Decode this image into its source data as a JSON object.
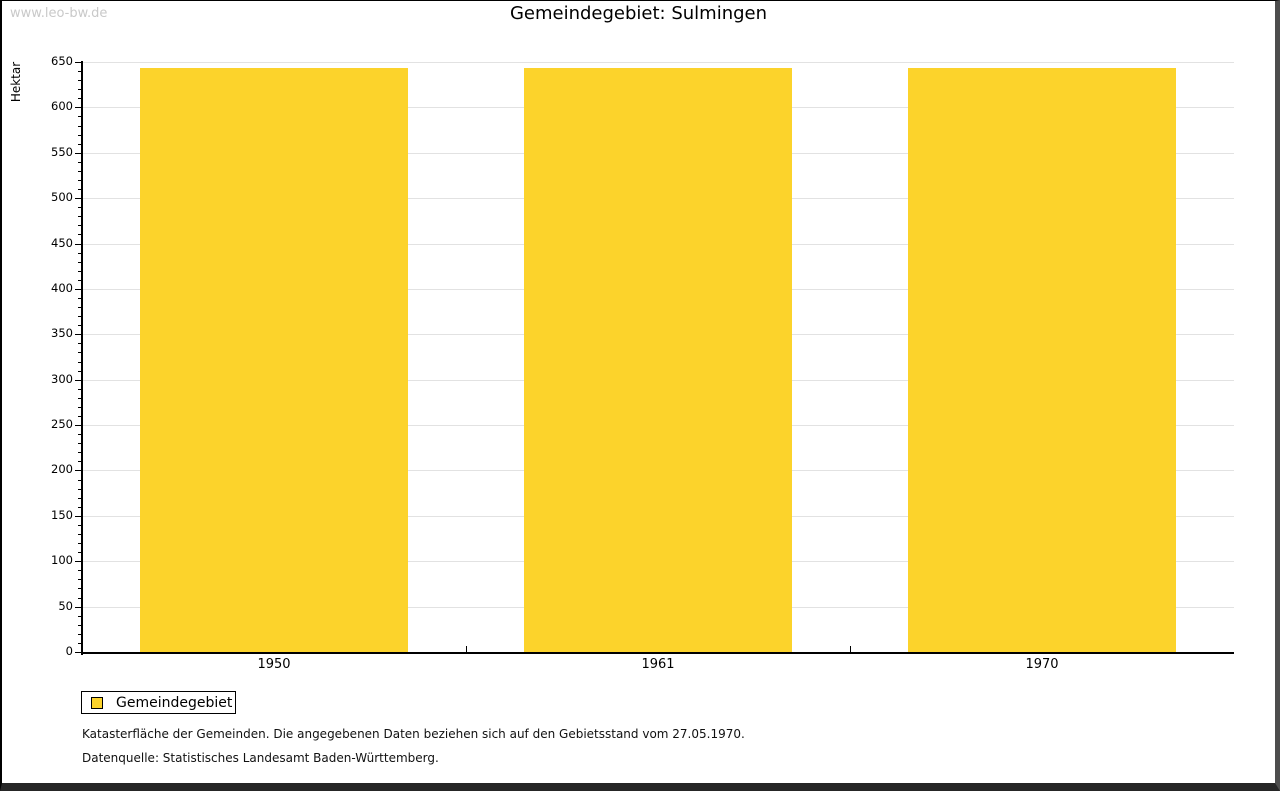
{
  "watermark": "www.leo-bw.de",
  "header": {
    "title": "Gemeindegebiet: Sulmingen"
  },
  "chart_data": {
    "type": "bar",
    "title": "Gemeindegebiet: Sulmingen",
    "categories": [
      "1950",
      "1961",
      "1970"
    ],
    "series": [
      {
        "name": "Gemeindegebiet",
        "values": [
          643,
          643,
          643
        ],
        "color": "#FCD32B"
      }
    ],
    "xlabel": "",
    "ylabel": "Hektar",
    "ylim": [
      0,
      650
    ],
    "ytick_major_step": 50,
    "ytick_minor_step": 10,
    "grid": "horizontal-major",
    "legend_position": "bottom-left",
    "colors": {
      "bar": "#FCD32B",
      "grid": "#e2e2e2",
      "axis": "#000000"
    }
  },
  "legend": {
    "items": [
      {
        "label": "Gemeindegebiet",
        "color": "#FCD32B"
      }
    ]
  },
  "footnotes": [
    "Katasterfläche der Gemeinden. Die angegebenen Daten beziehen sich auf den Gebietsstand vom 27.05.1970.",
    "Datenquelle: Statistisches Landesamt Baden-Württemberg."
  ]
}
